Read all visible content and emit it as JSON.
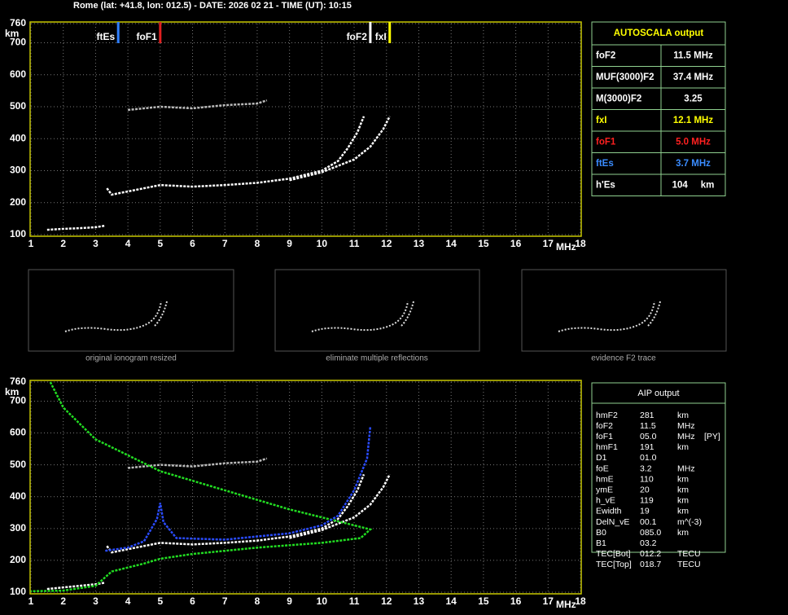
{
  "header": {
    "title": "Rome (lat: +41.8, lon: 012.5) - DATE: 2026 02 21 - TIME (UT): 10:15"
  },
  "ionogram_top": {
    "type": "line",
    "x_label": "MHz",
    "y_label": "km",
    "xlim": [
      1,
      18
    ],
    "ylim": [
      100,
      760
    ],
    "xticks": [
      1,
      2,
      3,
      4,
      5,
      6,
      7,
      8,
      9,
      10,
      11,
      12,
      13,
      14,
      15,
      16,
      17,
      18
    ],
    "yticks": [
      100,
      200,
      300,
      400,
      500,
      600,
      700,
      760
    ],
    "grid": true,
    "markers": [
      {
        "label": "ftEs",
        "value": 3.7,
        "color": "#2f7fff"
      },
      {
        "label": "foF1",
        "value": 5.0,
        "color": "#e02020"
      },
      {
        "label": "foF2",
        "value": 11.5,
        "color": "#ffffff"
      },
      {
        "label": "fxI",
        "value": 12.1,
        "color": "#ffff00"
      }
    ],
    "series": [
      {
        "color": "#ffffff",
        "x": [
          1.5,
          2,
          2.5,
          3,
          3.3
        ],
        "values": [
          115,
          118,
          120,
          123,
          128
        ]
      },
      {
        "color": "#ffffff",
        "x": [
          3.35,
          3.5,
          4,
          5,
          6,
          7,
          8,
          9,
          10,
          10.5,
          10.8,
          11.1,
          11.3
        ],
        "values": [
          245,
          225,
          235,
          255,
          250,
          255,
          262,
          275,
          300,
          330,
          370,
          420,
          470
        ]
      },
      {
        "color": "#ffffff",
        "x": [
          9,
          10,
          11,
          11.5,
          11.9,
          12.1
        ],
        "values": [
          270,
          295,
          335,
          375,
          430,
          470
        ]
      },
      {
        "color": "#bbbbbb",
        "x": [
          4,
          5,
          6,
          7,
          8,
          8.3
        ],
        "values": [
          490,
          500,
          495,
          505,
          510,
          520
        ]
      }
    ]
  },
  "autoscala": {
    "title": "AUTOSCALA output",
    "rows": [
      {
        "label": "foF2",
        "value": "11.5 MHz",
        "color": "#ffffff"
      },
      {
        "label": "MUF(3000)F2",
        "value": "37.4 MHz",
        "color": "#ffffff"
      },
      {
        "label": "M(3000)F2",
        "value": "3.25",
        "color": "#ffffff"
      },
      {
        "label": "fxI",
        "value": "12.1 MHz",
        "color": "#ffff00"
      },
      {
        "label": "foF1",
        "value": "5.0 MHz",
        "color": "#ff2020"
      },
      {
        "label": "ftEs",
        "value": "3.7 MHz",
        "color": "#3a8cff"
      },
      {
        "label": "h'Es",
        "value": "104     km",
        "color": "#ffffff"
      }
    ]
  },
  "thumbnails": [
    {
      "caption": "original ionogram resized"
    },
    {
      "caption": "eliminate multiple reflections"
    },
    {
      "caption": "evidence F2 trace"
    }
  ],
  "ionogram_bottom": {
    "type": "line",
    "x_label": "MHz",
    "y_label": "km",
    "xlim": [
      1,
      18
    ],
    "ylim": [
      100,
      760
    ],
    "xticks": [
      1,
      2,
      3,
      4,
      5,
      6,
      7,
      8,
      9,
      10,
      11,
      12,
      13,
      14,
      15,
      16,
      17,
      18
    ],
    "yticks": [
      100,
      200,
      300,
      400,
      500,
      600,
      700,
      760
    ],
    "grid": true,
    "series": [
      {
        "color": "#ffffff",
        "x": [
          1.5,
          2,
          2.5,
          3,
          3.3
        ],
        "values": [
          110,
          115,
          120,
          125,
          130
        ]
      },
      {
        "color": "#ffffff",
        "x": [
          3.35,
          3.5,
          4,
          5,
          6,
          7,
          8,
          9,
          10,
          10.5,
          10.8,
          11.1,
          11.3
        ],
        "values": [
          245,
          225,
          235,
          255,
          250,
          255,
          262,
          275,
          300,
          330,
          370,
          420,
          470
        ]
      },
      {
        "color": "#ffffff",
        "x": [
          9,
          10,
          11,
          11.5,
          11.9,
          12.1
        ],
        "values": [
          270,
          295,
          335,
          375,
          430,
          470
        ]
      },
      {
        "color": "#bbbbbb",
        "x": [
          4,
          5,
          6,
          7,
          8,
          8.3
        ],
        "values": [
          490,
          500,
          495,
          505,
          510,
          520
        ]
      },
      {
        "color": "#22dd22",
        "x": [
          1.6,
          2,
          3,
          4,
          5,
          6,
          7,
          8,
          9,
          10,
          11,
          11.5,
          11.2,
          10,
          8,
          6,
          5,
          4.5,
          3.5,
          3,
          2,
          1
        ],
        "values": [
          760,
          680,
          580,
          530,
          480,
          450,
          420,
          390,
          360,
          335,
          310,
          297,
          270,
          255,
          240,
          220,
          205,
          190,
          165,
          120,
          105,
          103
        ]
      },
      {
        "color": "#2a4cff",
        "x": [
          3.3,
          4,
          4.5,
          4.9,
          5,
          5.1,
          5.5,
          7,
          9,
          10,
          10.5,
          11,
          11.4,
          11.5
        ],
        "values": [
          230,
          240,
          260,
          330,
          380,
          320,
          270,
          265,
          285,
          310,
          340,
          420,
          520,
          620
        ]
      }
    ]
  },
  "aip": {
    "title": "AIP output",
    "rows": [
      [
        "hmF2",
        "281",
        "km"
      ],
      [
        "foF2",
        "11.5",
        "MHz"
      ],
      [
        "foF1",
        "05.0",
        "MHz",
        "[PY]"
      ],
      [
        "hmF1",
        "191",
        "km"
      ],
      [
        "D1",
        "01.0"
      ],
      [
        "foE",
        "3.2",
        "MHz"
      ],
      [
        "hmE",
        "110",
        "km"
      ],
      [
        "ymE",
        "20",
        "km"
      ],
      [
        "h_vE",
        "119",
        "km"
      ],
      [
        "Ewidth",
        "19",
        "km"
      ],
      [
        "DelN_vE",
        "00.1",
        "m^(-3)"
      ],
      [
        "B0",
        "085.0",
        "km"
      ],
      [
        "B1",
        "03.2"
      ],
      [
        "TEC[Bot]",
        "012.2",
        "TECU"
      ],
      [
        "TEC[Top]",
        "018.7",
        "TECU"
      ]
    ]
  }
}
